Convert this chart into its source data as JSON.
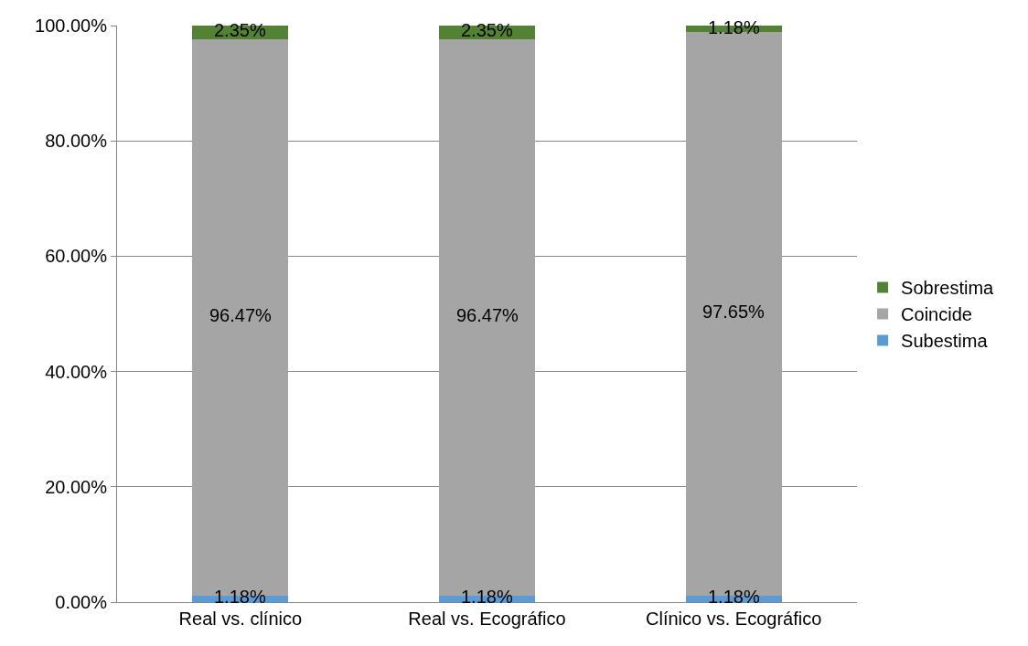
{
  "chart_data": {
    "type": "bar",
    "stacked": true,
    "categories": [
      "Real vs. clínico",
      "Real vs. Ecográfico",
      "Clínico vs. Ecográfico"
    ],
    "series": [
      {
        "name": "Subestima",
        "color": "#5b9bd5",
        "values": [
          1.18,
          1.18,
          1.18
        ],
        "value_labels": [
          "1.18%",
          "1.18%",
          "1.18%"
        ]
      },
      {
        "name": "Coincide",
        "color": "#a5a5a5",
        "values": [
          96.47,
          96.47,
          97.65
        ],
        "value_labels": [
          "96.47%",
          "96.47%",
          "97.65%"
        ]
      },
      {
        "name": "Sobrestima",
        "color": "#548235",
        "values": [
          2.35,
          2.35,
          1.18
        ],
        "value_labels": [
          "2.35%",
          "2.35%",
          "1.18%"
        ]
      }
    ],
    "ylim": [
      0,
      100
    ],
    "yticks": [
      {
        "value": 0,
        "label": "0.00%"
      },
      {
        "value": 20,
        "label": "20.00%"
      },
      {
        "value": 40,
        "label": "40.00%"
      },
      {
        "value": 60,
        "label": "60.00%"
      },
      {
        "value": 80,
        "label": "80.00%"
      },
      {
        "value": 100,
        "label": "100.00%"
      }
    ],
    "grid": "y",
    "legend": "right"
  }
}
